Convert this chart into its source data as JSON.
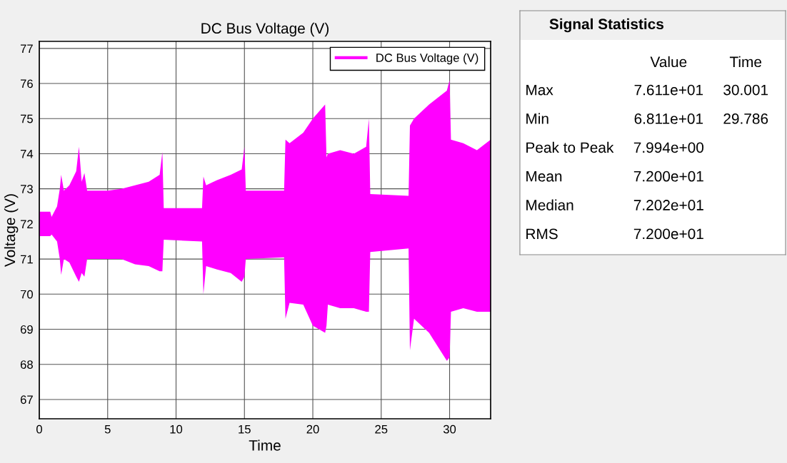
{
  "chart_data": [
    {
      "type": "line",
      "title": "DC Bus Voltage (V)",
      "xlabel": "Time",
      "ylabel": "Voltage (V)",
      "xlim": [
        0,
        33
      ],
      "xticks": [
        0,
        5,
        10,
        15,
        20,
        25,
        30
      ],
      "ylim": [
        66.45,
        77.2
      ],
      "yticks": [
        67,
        68,
        69,
        70,
        71,
        72,
        73,
        74,
        75,
        76,
        77
      ],
      "grid": true,
      "legend": "top right",
      "line_style": "solid",
      "series": [
        {
          "name": "DC Bus Voltage (V)",
          "color": "#ff00ff",
          "x": [
            0,
            0.8,
            0.9,
            1.3,
            1.5,
            1.6,
            1.8,
            2.2,
            2.7,
            2.9,
            3.1,
            3.3,
            3.5,
            5,
            6,
            7,
            8,
            8.8,
            9.0,
            9.1,
            11.9,
            12.0,
            12.2,
            13,
            14,
            14.8,
            15.0,
            15.1,
            17.9,
            18.0,
            18.3,
            19.3,
            20,
            20.9,
            21.0,
            21.1,
            22,
            23,
            23.9,
            24.1,
            24.2,
            27.0,
            27.1,
            27.4,
            28.5,
            29.8,
            30.0,
            30.1,
            31,
            32,
            33
          ],
          "values": [
            null,
            null,
            null,
            null,
            null,
            null,
            null,
            null,
            null,
            null,
            null,
            null,
            null,
            null,
            null,
            null,
            null,
            null,
            null,
            null,
            null,
            null,
            null,
            null,
            null,
            null,
            null,
            null,
            null,
            null,
            null,
            null,
            null,
            null,
            null,
            null,
            null,
            null,
            null,
            null,
            null,
            null,
            null,
            null,
            null,
            null,
            null,
            null,
            null,
            null,
            null
          ],
          "lower": [
            71.65,
            71.65,
            71.7,
            71.5,
            71.0,
            70.55,
            71.0,
            70.9,
            70.5,
            70.35,
            70.6,
            70.5,
            71.0,
            71.0,
            71.0,
            70.85,
            70.8,
            70.65,
            70.65,
            71.55,
            71.5,
            70.0,
            70.8,
            70.7,
            70.6,
            70.35,
            70.5,
            71.0,
            71.05,
            69.3,
            69.75,
            69.7,
            69.1,
            68.9,
            69.1,
            69.7,
            69.6,
            69.6,
            69.5,
            69.5,
            71.2,
            71.3,
            68.4,
            69.3,
            68.9,
            68.1,
            68.2,
            69.5,
            69.6,
            69.5,
            69.5
          ],
          "upper": [
            72.35,
            72.35,
            72.2,
            72.5,
            73.0,
            73.4,
            72.95,
            73.1,
            73.5,
            74.2,
            73.2,
            73.45,
            72.95,
            72.95,
            73.0,
            73.1,
            73.2,
            73.4,
            74.05,
            72.45,
            72.45,
            73.35,
            73.1,
            73.25,
            73.4,
            73.55,
            74.2,
            72.95,
            72.95,
            74.4,
            74.3,
            74.6,
            75.0,
            75.4,
            73.9,
            74.0,
            74.1,
            74.0,
            74.2,
            75.0,
            72.85,
            72.8,
            74.8,
            75.0,
            75.4,
            75.8,
            76.1,
            74.4,
            74.3,
            74.1,
            74.4
          ]
        }
      ]
    },
    {
      "type": "other",
      "title": "Signal Statistics",
      "categories": [
        "Max",
        "Min",
        "Peak to Peak",
        "Mean",
        "Median",
        "RMS"
      ],
      "series": [
        {
          "name": "Value",
          "values": [
            76.11,
            68.11,
            7.994,
            72.0,
            72.02,
            72.0
          ],
          "value_labels": [
            "7.611e+01",
            "6.811e+01",
            "7.994e+00",
            "7.200e+01",
            "7.202e+01",
            "7.200e+01"
          ]
        },
        {
          "name": "Time",
          "values": [
            30.001,
            29.786,
            null,
            null,
            null,
            null
          ],
          "value_labels": [
            "30.001",
            "29.786",
            null,
            null,
            null,
            null
          ]
        }
      ]
    }
  ]
}
